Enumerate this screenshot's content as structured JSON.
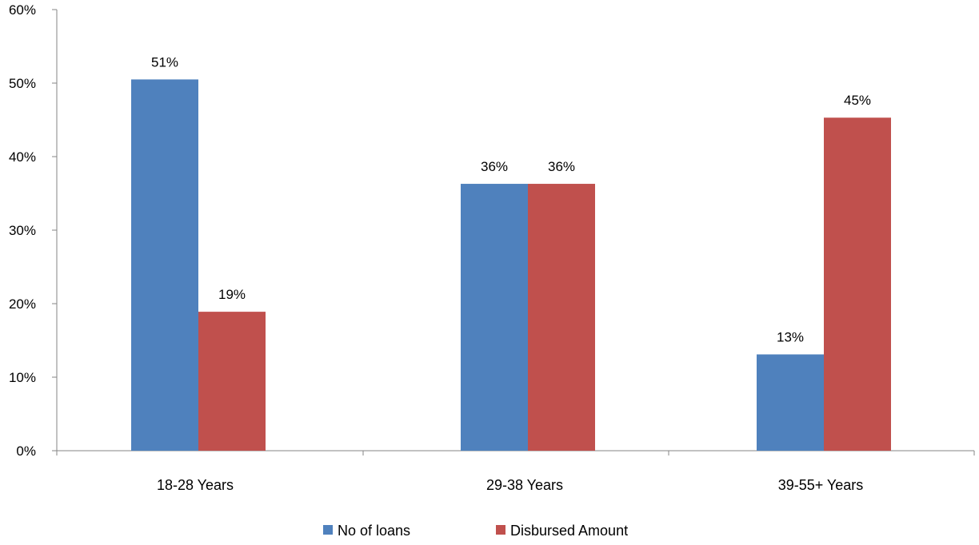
{
  "chart_data": {
    "type": "bar",
    "title": "",
    "xlabel": "",
    "ylabel": "",
    "categories": [
      "18-28 Years",
      "29-38 Years",
      "39-55+ Years"
    ],
    "series": [
      {
        "name": "No of loans",
        "color": "#4F81BD",
        "values": [
          50.5,
          36.3,
          13.1
        ],
        "labels": [
          "51%",
          "36%",
          "13%"
        ]
      },
      {
        "name": "Disbursed Amount",
        "color": "#C0504D",
        "values": [
          18.9,
          36.3,
          45.3
        ],
        "labels": [
          "19%",
          "36%",
          "45%"
        ]
      }
    ],
    "ylim": [
      0,
      60
    ],
    "yticks": [
      0,
      10,
      20,
      30,
      40,
      50,
      60
    ],
    "ytick_labels": [
      "0%",
      "10%",
      "20%",
      "30%",
      "40%",
      "50%",
      "60%"
    ],
    "grid": false,
    "legend_position": "bottom"
  }
}
